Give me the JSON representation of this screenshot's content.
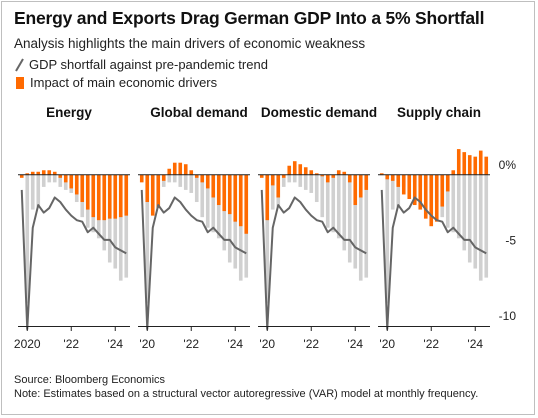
{
  "title": "Energy and Exports Drag German GDP Into a 5% Shortfall",
  "subtitle": "Analysis highlights the main drivers of economic weakness",
  "legend": {
    "line_label": "GDP shortfall against pre-pandemic trend",
    "bar_label": "Impact of main economic drivers"
  },
  "source": "Source: Bloomberg Economics",
  "note": "Note: Estimates based on a structural vector autoregressive (VAR) model at monthly frequency.",
  "colors": {
    "driver": "#ff6a00",
    "total_bar": "#d0d0d0",
    "line": "#666666",
    "axis": "#222222"
  },
  "chart_data": {
    "type": "bar",
    "ylim": [
      -10,
      2.5
    ],
    "y_ticks": [
      0,
      -5,
      -10
    ],
    "y_tick_labels": [
      "0%",
      "-5",
      "-10"
    ],
    "x_tick_labels": [
      [
        "2020",
        "'22",
        "'24"
      ],
      [
        "'20",
        "'22",
        "'24"
      ],
      [
        "'20",
        "'22",
        "'24"
      ],
      [
        "'20",
        "'22",
        "'24"
      ]
    ],
    "x_tick_index": [
      1,
      9,
      17
    ],
    "panels": [
      "Energy",
      "Global demand",
      "Domestic demand",
      "Supply chain"
    ],
    "total_bars": [
      0,
      -8.5,
      -2.3,
      -2.1,
      -0.8,
      -0.5,
      -0.5,
      -0.8,
      -1.0,
      -1.2,
      -1.8,
      -2.8,
      -3.5,
      -3.8,
      -4.2,
      -5.0,
      -5.8,
      -6.2,
      -7.0,
      -6.8
    ],
    "line": [
      -1.0,
      -10.2,
      -3.5,
      -2.0,
      -2.5,
      -2.2,
      -1.5,
      -1.8,
      -2.3,
      -2.7,
      -3.0,
      -3.1,
      -3.8,
      -3.5,
      -3.9,
      -4.3,
      -4.3,
      -4.8,
      -5.0,
      -5.2
    ],
    "series": [
      {
        "name": "Energy",
        "values": [
          -0.2,
          0.1,
          0.2,
          0.2,
          0.3,
          0.3,
          0.2,
          -0.2,
          -0.5,
          -0.9,
          -1.3,
          -1.8,
          -2.3,
          -2.8,
          -3.0,
          -3.0,
          -2.9,
          -2.9,
          -2.8,
          -2.7
        ]
      },
      {
        "name": "Global demand",
        "values": [
          -0.5,
          -1.8,
          -2.7,
          -2.2,
          -0.4,
          0.4,
          0.8,
          0.8,
          0.7,
          0.3,
          -0.2,
          -0.5,
          -0.9,
          -1.5,
          -2.0,
          -2.4,
          -2.6,
          -3.1,
          -3.4,
          -3.9
        ]
      },
      {
        "name": "Domestic demand",
        "values": [
          -0.2,
          -3.0,
          -0.7,
          -1.5,
          -0.2,
          0.6,
          0.9,
          0.7,
          0.5,
          0.3,
          0.1,
          -0.1,
          -0.5,
          -0.2,
          0.3,
          0.2,
          -0.5,
          -2.0,
          -1.5,
          -1.0
        ]
      },
      {
        "name": "Supply chain",
        "values": [
          0.1,
          -0.3,
          -0.4,
          -0.8,
          -1.3,
          -1.6,
          -2.0,
          -2.3,
          -2.9,
          -3.4,
          -3.1,
          -2.1,
          -1.1,
          0.3,
          1.7,
          1.5,
          1.3,
          1.2,
          1.6,
          1.2
        ]
      }
    ]
  }
}
